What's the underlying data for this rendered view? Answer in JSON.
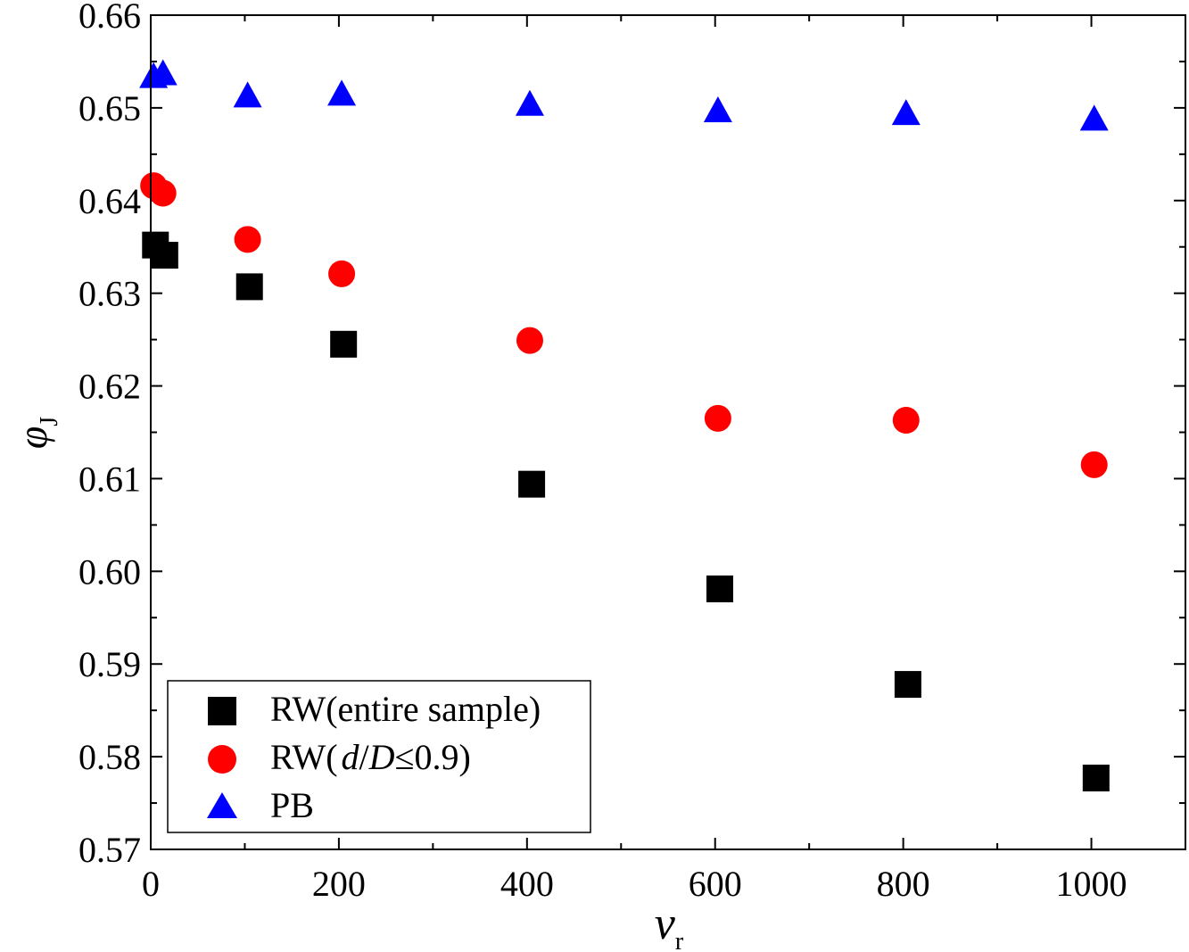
{
  "chart_data": {
    "type": "scatter",
    "xlabel": "v",
    "xlabel_sub": "r",
    "ylabel": "φ",
    "ylabel_sub": "J",
    "xlim": [
      0,
      1100
    ],
    "ylim": [
      0.57,
      0.66
    ],
    "x_ticks": [
      "0",
      "200",
      "400",
      "600",
      "800",
      "1000"
    ],
    "x_tick_values": [
      0,
      200,
      400,
      600,
      800,
      1000
    ],
    "y_ticks": [
      "0.57",
      "0.58",
      "0.59",
      "0.60",
      "0.61",
      "0.62",
      "0.63",
      "0.64",
      "0.65",
      "0.66"
    ],
    "y_tick_values": [
      0.57,
      0.58,
      0.59,
      0.6,
      0.61,
      0.62,
      0.63,
      0.64,
      0.65,
      0.66
    ],
    "grid": false,
    "legend_position": "bottom-left",
    "series": [
      {
        "name": "RW(entire sample)",
        "marker": "square",
        "color": "#000000",
        "x": [
          5,
          15,
          105,
          205,
          405,
          605,
          805,
          1005
        ],
        "y": [
          0.6352,
          0.6341,
          0.6307,
          0.6245,
          0.6094,
          0.5981,
          0.5878,
          0.5777
        ]
      },
      {
        "name_parts": [
          "RW(",
          "d",
          "/",
          "D",
          "≤0.9)"
        ],
        "marker": "circle",
        "color": "#ff0000",
        "x": [
          3,
          13,
          103,
          203,
          403,
          603,
          803,
          1003
        ],
        "y": [
          0.6416,
          0.6408,
          0.6358,
          0.6321,
          0.6249,
          0.6165,
          0.6163,
          0.6115
        ]
      },
      {
        "name": "PB",
        "marker": "triangle",
        "color": "#0000ff",
        "x": [
          3,
          13,
          103,
          203,
          403,
          603,
          803,
          1003
        ],
        "y": [
          0.6533,
          0.6536,
          0.6512,
          0.6514,
          0.6503,
          0.6496,
          0.6493,
          0.6487
        ]
      }
    ]
  }
}
